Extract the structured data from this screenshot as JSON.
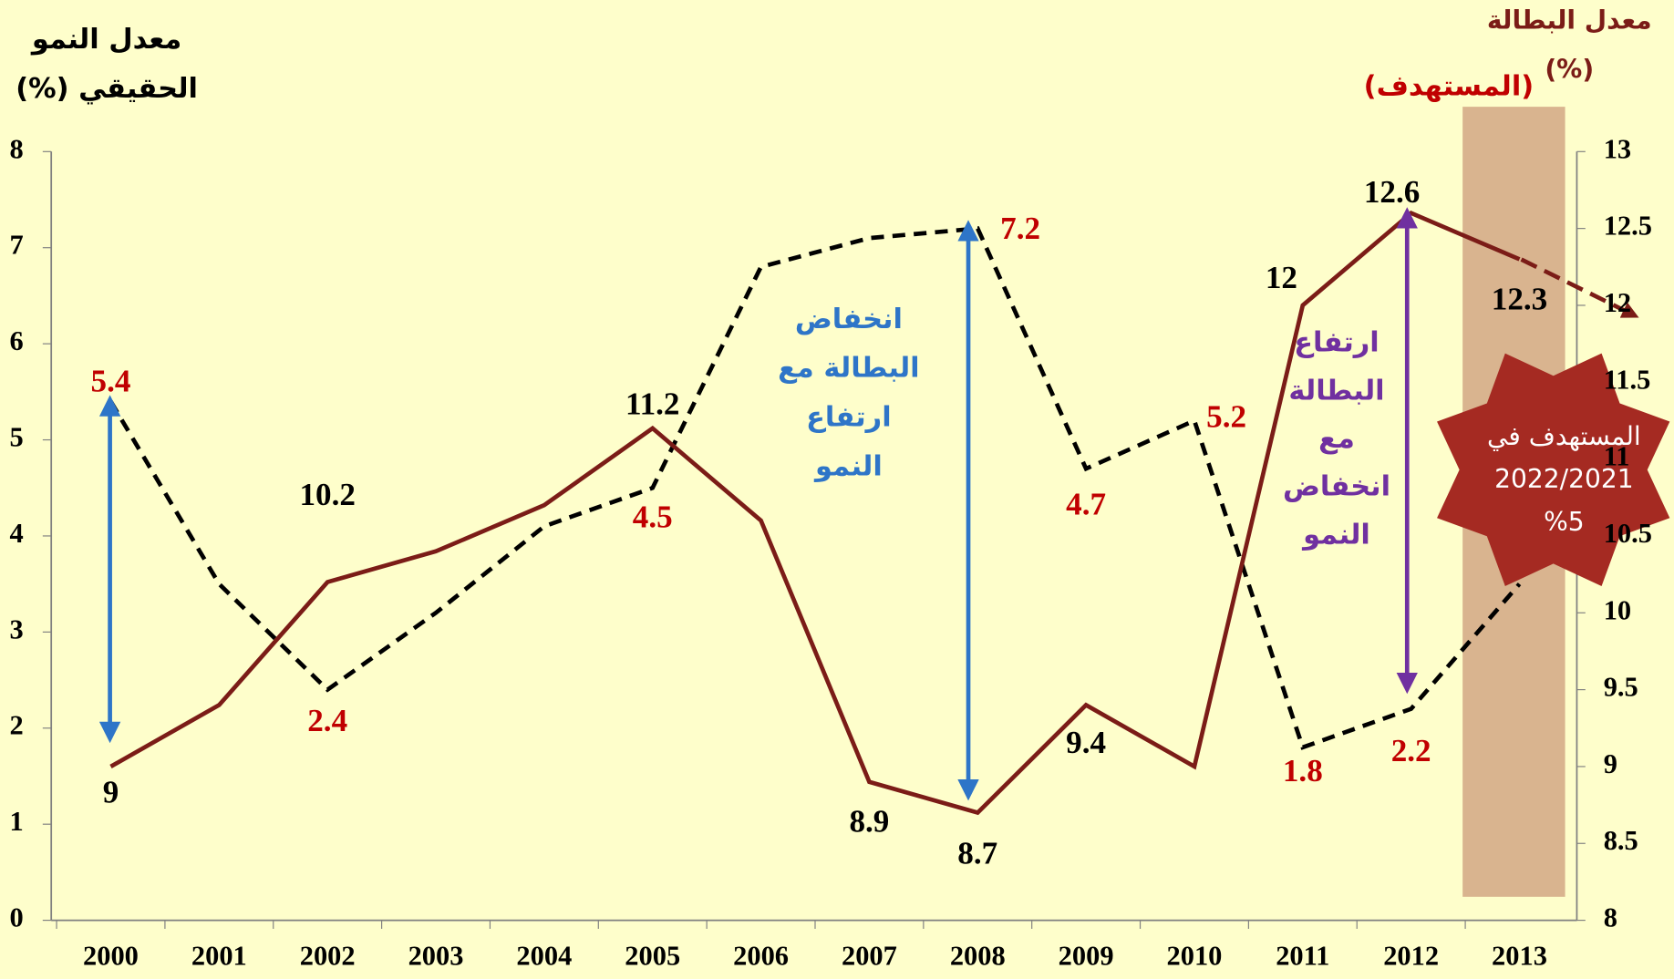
{
  "chart_data": {
    "type": "line",
    "y_label": [
      "معدل النمو",
      "الحقيقي (%)"
    ],
    "y2_label": [
      "معدل البطالة",
      "(%)"
    ],
    "target_label": "(المستهدف)",
    "categories": [
      "2000",
      "2001",
      "2002",
      "2003",
      "2004",
      "2005",
      "2006",
      "2007",
      "2008",
      "2009",
      "2010",
      "2011",
      "2012",
      "2013"
    ],
    "series": [
      {
        "name": "معدل النمو الحقيقي",
        "color": "#000000",
        "dashed": true,
        "label_color": "#c00000",
        "values": [
          5.4,
          3.5,
          2.4,
          3.2,
          4.1,
          4.5,
          6.8,
          7.1,
          7.2,
          4.7,
          5.2,
          1.8,
          2.2,
          3.5
        ],
        "value_labels": [
          "5.4",
          null,
          "2.4",
          null,
          null,
          "4.5",
          null,
          null,
          "7.2",
          "4.7",
          "5.2",
          "1.8",
          "2.2",
          "3.5"
        ]
      },
      {
        "name": "معدل البطالة",
        "color": "#7b1c17",
        "axis": "y2",
        "label_color": "#000000",
        "values": [
          9,
          9.4,
          10.2,
          10.4,
          10.7,
          11.2,
          10.6,
          8.9,
          8.7,
          9.4,
          9.0,
          12,
          12.6,
          12.3
        ],
        "value_labels": [
          "9",
          null,
          "10.2",
          null,
          null,
          "11.2",
          null,
          "8.9",
          "8.7",
          "9.4",
          null,
          "12",
          "12.6",
          "12.3"
        ]
      }
    ],
    "ylim": [
      0,
      8
    ],
    "yticks": [
      0,
      1,
      2,
      3,
      4,
      5,
      6,
      7,
      8
    ],
    "y2lim": [
      8,
      13
    ],
    "y2ticks": [
      8,
      8.5,
      9,
      9.5,
      10,
      10.5,
      11,
      11.5,
      12,
      12.5,
      13
    ],
    "annotations": [
      {
        "lines": [
          "انخفاض",
          "البطالة مع",
          "ارتفاع",
          "النمو"
        ],
        "color": "#2e75c8"
      },
      {
        "lines": [
          "ارتفاع",
          "البطالة",
          "مع",
          "انخفاض",
          "النمو"
        ],
        "color": "#7030a0"
      },
      {
        "lines": [
          "المستهدف في",
          "2022/2021",
          "%5"
        ],
        "color": "#ffffff"
      }
    ]
  }
}
